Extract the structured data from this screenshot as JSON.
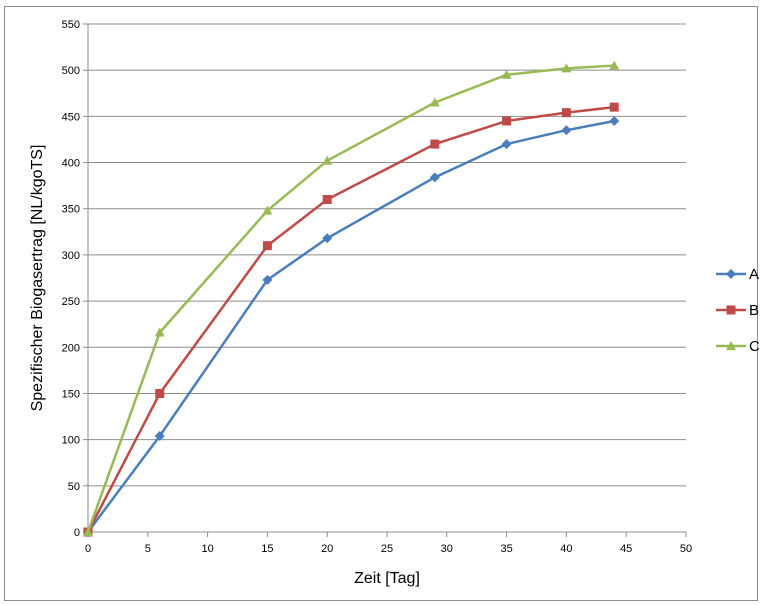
{
  "chart_data": {
    "type": "line",
    "xlabel": "Zeit [Tag]",
    "ylabel": "Spezifischer Biogasertrag [NL/kgoTS]",
    "xlim": [
      0,
      50
    ],
    "ylim": [
      0,
      550
    ],
    "x_ticks": [
      0,
      5,
      10,
      15,
      20,
      25,
      30,
      35,
      40,
      45,
      50
    ],
    "y_ticks": [
      0,
      50,
      100,
      150,
      200,
      250,
      300,
      350,
      400,
      450,
      500,
      550
    ],
    "grid": "horizontal",
    "legend_position": "right",
    "x": [
      0,
      6,
      15,
      20,
      29,
      35,
      40,
      44
    ],
    "series": [
      {
        "name": "A",
        "color": "#4a7ebb",
        "marker": "diamond",
        "values": [
          0,
          104,
          273,
          318,
          384,
          420,
          435,
          445
        ]
      },
      {
        "name": "B",
        "color": "#be4b48",
        "marker": "square",
        "values": [
          0,
          150,
          310,
          360,
          420,
          445,
          454,
          460
        ]
      },
      {
        "name": "C",
        "color": "#98b954",
        "marker": "triangle",
        "values": [
          0,
          216,
          348,
          402,
          465,
          495,
          502,
          505
        ]
      }
    ]
  }
}
